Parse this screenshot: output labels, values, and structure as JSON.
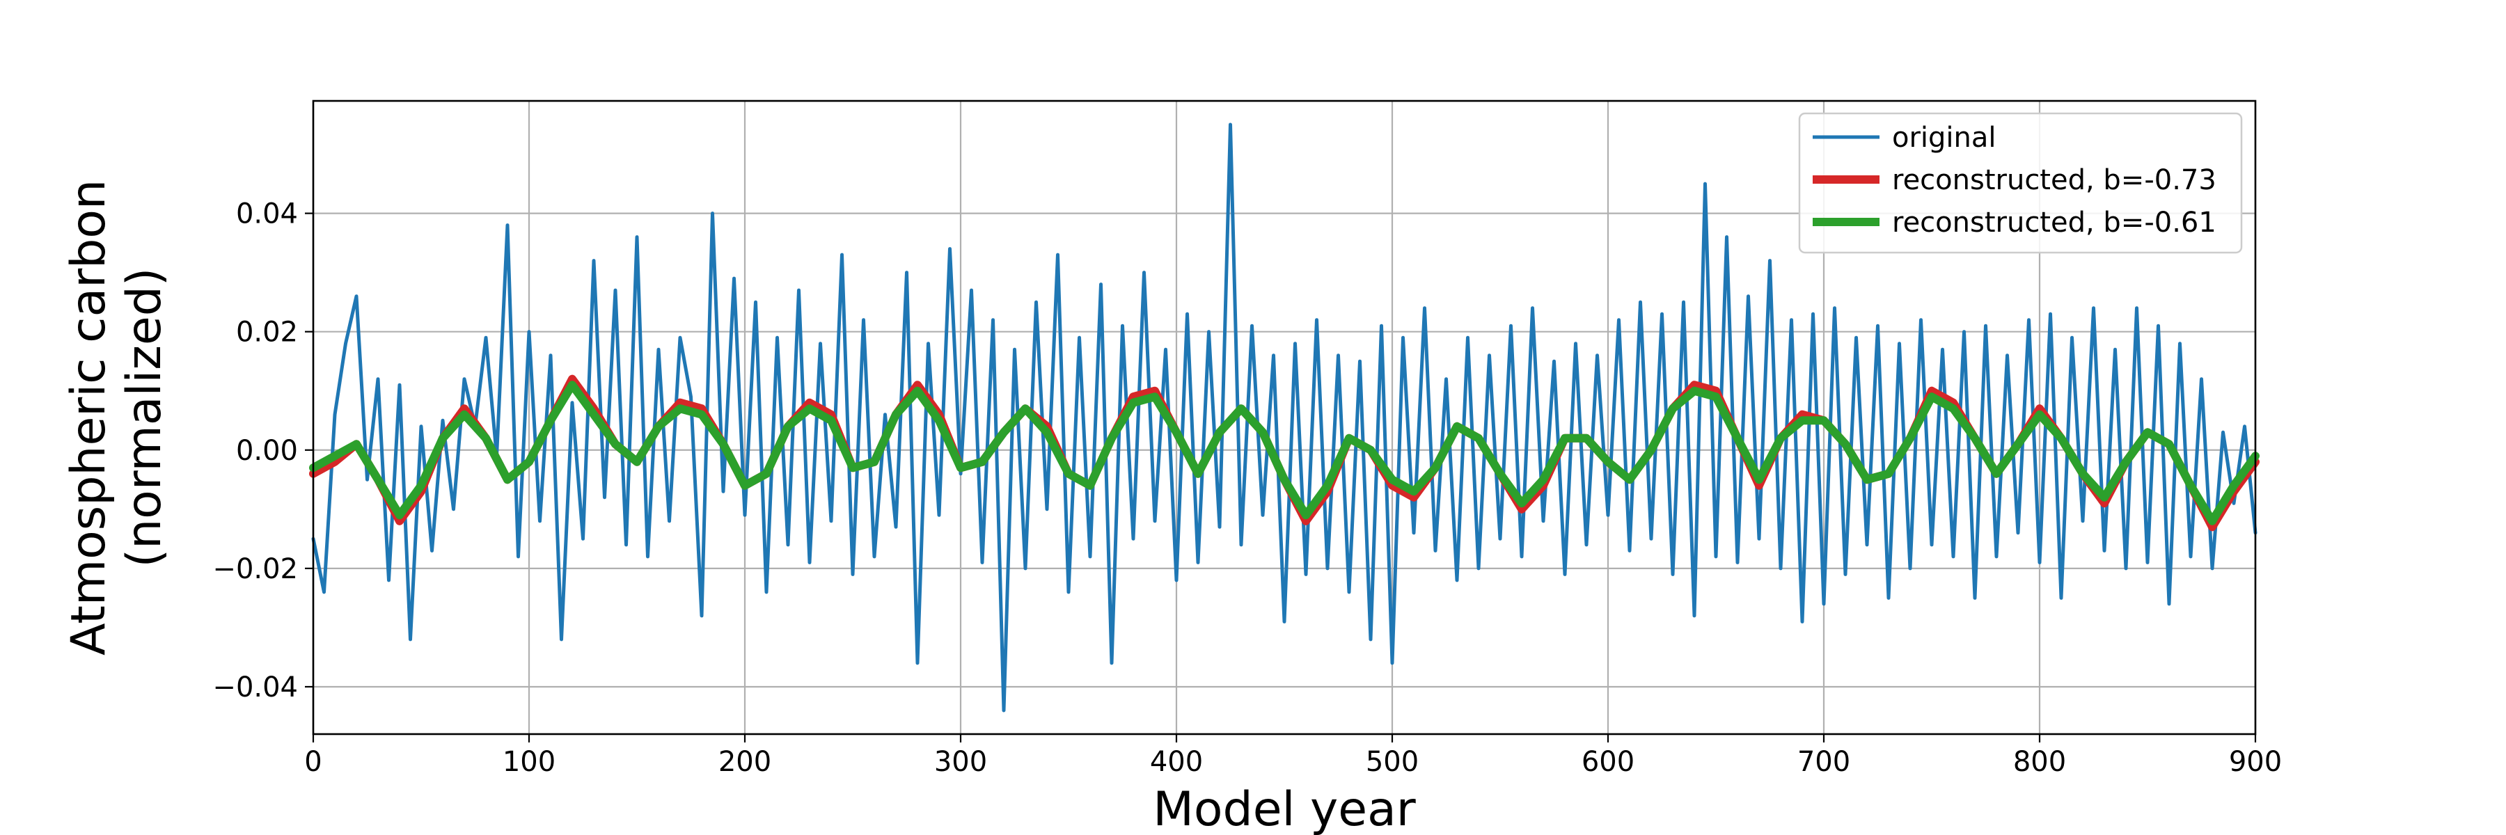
{
  "chart_data": {
    "type": "line",
    "title": "",
    "xlabel": "Model year",
    "ylabel_line1": "Atmospheric carbon",
    "ylabel_line2": "(normalized)",
    "xlim": [
      0,
      900
    ],
    "ylim": [
      -0.048,
      0.059
    ],
    "grid": true,
    "legend_position": "top-right",
    "x_ticks": [
      0,
      100,
      200,
      300,
      400,
      500,
      600,
      700,
      800,
      900
    ],
    "x_tick_labels": [
      "0",
      "100",
      "200",
      "300",
      "400",
      "500",
      "600",
      "700",
      "800",
      "900"
    ],
    "y_ticks": [
      -0.04,
      -0.02,
      0.0,
      0.02,
      0.04
    ],
    "y_tick_labels": [
      "−0.04",
      "−0.02",
      "0.00",
      "0.02",
      "0.04"
    ],
    "series": [
      {
        "name": "original",
        "color": "#1f77b4",
        "x": [
          0,
          5,
          10,
          15,
          20,
          25,
          30,
          35,
          40,
          45,
          50,
          55,
          60,
          65,
          70,
          75,
          80,
          85,
          90,
          95,
          100,
          105,
          110,
          115,
          120,
          125,
          130,
          135,
          140,
          145,
          150,
          155,
          160,
          165,
          170,
          175,
          180,
          185,
          190,
          195,
          200,
          205,
          210,
          215,
          220,
          225,
          230,
          235,
          240,
          245,
          250,
          255,
          260,
          265,
          270,
          275,
          280,
          285,
          290,
          295,
          300,
          305,
          310,
          315,
          320,
          325,
          330,
          335,
          340,
          345,
          350,
          355,
          360,
          365,
          370,
          375,
          380,
          385,
          390,
          395,
          400,
          405,
          410,
          415,
          420,
          425,
          430,
          435,
          440,
          445,
          450,
          455,
          460,
          465,
          470,
          475,
          480,
          485,
          490,
          495,
          500,
          505,
          510,
          515,
          520,
          525,
          530,
          535,
          540,
          545,
          550,
          555,
          560,
          565,
          570,
          575,
          580,
          585,
          590,
          595,
          600,
          605,
          610,
          615,
          620,
          625,
          630,
          635,
          640,
          645,
          650,
          655,
          660,
          665,
          670,
          675,
          680,
          685,
          690,
          695,
          700,
          705,
          710,
          715,
          720,
          725,
          730,
          735,
          740,
          745,
          750,
          755,
          760,
          765,
          770,
          775,
          780,
          785,
          790,
          795,
          800,
          805,
          810,
          815,
          820,
          825,
          830,
          835,
          840,
          845,
          850,
          855,
          860,
          865,
          870,
          875,
          880,
          885,
          890,
          895,
          900
        ],
        "y": [
          -0.015,
          -0.024,
          0.006,
          0.018,
          0.026,
          -0.005,
          0.012,
          -0.022,
          0.011,
          -0.032,
          0.004,
          -0.017,
          0.005,
          -0.01,
          0.012,
          0.004,
          0.019,
          -0.001,
          0.038,
          -0.018,
          0.02,
          -0.012,
          0.016,
          -0.032,
          0.008,
          -0.015,
          0.032,
          -0.008,
          0.027,
          -0.016,
          0.036,
          -0.018,
          0.017,
          -0.012,
          0.019,
          0.009,
          -0.028,
          0.04,
          -0.007,
          0.029,
          -0.011,
          0.025,
          -0.024,
          0.019,
          -0.016,
          0.027,
          -0.019,
          0.018,
          -0.012,
          0.033,
          -0.021,
          0.022,
          -0.018,
          0.006,
          -0.013,
          0.03,
          -0.036,
          0.018,
          -0.011,
          0.034,
          -0.004,
          0.027,
          -0.019,
          0.022,
          -0.044,
          0.017,
          -0.02,
          0.025,
          -0.01,
          0.033,
          -0.024,
          0.019,
          -0.018,
          0.028,
          -0.036,
          0.021,
          -0.015,
          0.03,
          -0.012,
          0.017,
          -0.022,
          0.023,
          -0.019,
          0.02,
          -0.013,
          0.055,
          -0.016,
          0.021,
          -0.011,
          0.016,
          -0.029,
          0.018,
          -0.021,
          0.022,
          -0.02,
          0.016,
          -0.024,
          0.015,
          -0.032,
          0.021,
          -0.036,
          0.019,
          -0.014,
          0.024,
          -0.017,
          0.012,
          -0.022,
          0.019,
          -0.02,
          0.016,
          -0.015,
          0.021,
          -0.018,
          0.024,
          -0.012,
          0.015,
          -0.021,
          0.018,
          -0.016,
          0.016,
          -0.011,
          0.022,
          -0.017,
          0.025,
          -0.015,
          0.023,
          -0.021,
          0.025,
          -0.028,
          0.045,
          -0.018,
          0.036,
          -0.019,
          0.026,
          -0.015,
          0.032,
          -0.02,
          0.022,
          -0.029,
          0.023,
          -0.026,
          0.024,
          -0.021,
          0.019,
          -0.016,
          0.021,
          -0.025,
          0.018,
          -0.02,
          0.022,
          -0.016,
          0.017,
          -0.018,
          0.02,
          -0.025,
          0.021,
          -0.018,
          0.016,
          -0.014,
          0.022,
          -0.019,
          0.023,
          -0.025,
          0.019,
          -0.012,
          0.024,
          -0.017,
          0.017,
          -0.02,
          0.024,
          -0.019,
          0.021,
          -0.026,
          0.018,
          -0.018,
          0.012,
          -0.02,
          0.003,
          -0.009,
          0.004,
          -0.014
        ]
      },
      {
        "name": "reconstructed, b=-0.73",
        "color": "#d62728",
        "x": [
          0,
          10,
          20,
          30,
          40,
          50,
          60,
          70,
          80,
          90,
          100,
          110,
          120,
          130,
          140,
          150,
          160,
          170,
          180,
          190,
          200,
          210,
          220,
          230,
          240,
          250,
          260,
          270,
          280,
          290,
          300,
          310,
          320,
          330,
          340,
          350,
          360,
          370,
          380,
          390,
          400,
          410,
          420,
          430,
          440,
          450,
          460,
          470,
          480,
          490,
          500,
          510,
          520,
          530,
          540,
          550,
          560,
          570,
          580,
          590,
          600,
          610,
          620,
          630,
          640,
          650,
          660,
          670,
          680,
          690,
          700,
          710,
          720,
          730,
          740,
          750,
          760,
          770,
          780,
          790,
          800,
          810,
          820,
          830,
          840,
          850,
          860,
          870,
          880,
          890,
          900
        ],
        "y": [
          -0.004,
          -0.002,
          0.001,
          -0.005,
          -0.012,
          -0.007,
          0.002,
          0.007,
          0.002,
          -0.005,
          -0.002,
          0.005,
          0.012,
          0.007,
          0.001,
          -0.002,
          0.004,
          0.008,
          0.007,
          0.001,
          -0.006,
          -0.004,
          0.004,
          0.008,
          0.006,
          -0.003,
          -0.002,
          0.006,
          0.011,
          0.006,
          -0.003,
          -0.002,
          0.003,
          0.007,
          0.004,
          -0.004,
          -0.006,
          0.002,
          0.009,
          0.01,
          0.003,
          -0.004,
          0.003,
          0.007,
          0.003,
          -0.005,
          -0.012,
          -0.007,
          0.002,
          0.0,
          -0.006,
          -0.008,
          -0.003,
          0.004,
          0.002,
          -0.004,
          -0.01,
          -0.006,
          0.002,
          0.002,
          -0.002,
          -0.005,
          0.0,
          0.007,
          0.011,
          0.01,
          0.002,
          -0.006,
          0.002,
          0.006,
          0.005,
          0.001,
          -0.005,
          -0.004,
          0.002,
          0.01,
          0.008,
          0.002,
          -0.004,
          0.001,
          0.007,
          0.002,
          -0.004,
          -0.009,
          -0.002,
          0.003,
          0.001,
          -0.006,
          -0.013,
          -0.007,
          -0.002
        ]
      },
      {
        "name": "reconstructed, b=-0.61",
        "color": "#2ca02c",
        "x": [
          0,
          10,
          20,
          30,
          40,
          50,
          60,
          70,
          80,
          90,
          100,
          110,
          120,
          130,
          140,
          150,
          160,
          170,
          180,
          190,
          200,
          210,
          220,
          230,
          240,
          250,
          260,
          270,
          280,
          290,
          300,
          310,
          320,
          330,
          340,
          350,
          360,
          370,
          380,
          390,
          400,
          410,
          420,
          430,
          440,
          450,
          460,
          470,
          480,
          490,
          500,
          510,
          520,
          530,
          540,
          550,
          560,
          570,
          580,
          590,
          600,
          610,
          620,
          630,
          640,
          650,
          660,
          670,
          680,
          690,
          700,
          710,
          720,
          730,
          740,
          750,
          760,
          770,
          780,
          790,
          800,
          810,
          820,
          830,
          840,
          850,
          860,
          870,
          880,
          890,
          900
        ],
        "y": [
          -0.003,
          -0.001,
          0.001,
          -0.005,
          -0.011,
          -0.006,
          0.002,
          0.006,
          0.002,
          -0.005,
          -0.002,
          0.005,
          0.011,
          0.006,
          0.001,
          -0.002,
          0.004,
          0.007,
          0.006,
          0.001,
          -0.006,
          -0.004,
          0.004,
          0.007,
          0.005,
          -0.003,
          -0.002,
          0.006,
          0.01,
          0.005,
          -0.003,
          -0.002,
          0.003,
          0.007,
          0.003,
          -0.004,
          -0.006,
          0.002,
          0.008,
          0.009,
          0.003,
          -0.004,
          0.003,
          0.007,
          0.003,
          -0.005,
          -0.011,
          -0.006,
          0.002,
          0.0,
          -0.005,
          -0.007,
          -0.003,
          0.004,
          0.002,
          -0.004,
          -0.009,
          -0.005,
          0.002,
          0.002,
          -0.002,
          -0.005,
          0.0,
          0.007,
          0.01,
          0.009,
          0.002,
          -0.005,
          0.002,
          0.005,
          0.005,
          0.001,
          -0.005,
          -0.004,
          0.002,
          0.009,
          0.007,
          0.002,
          -0.004,
          0.001,
          0.006,
          0.002,
          -0.004,
          -0.008,
          -0.002,
          0.003,
          0.001,
          -0.006,
          -0.012,
          -0.006,
          -0.001
        ]
      }
    ]
  },
  "colors": {
    "grid": "#b0b0b0",
    "axes": "#000000",
    "legend_border": "#cccccc"
  }
}
